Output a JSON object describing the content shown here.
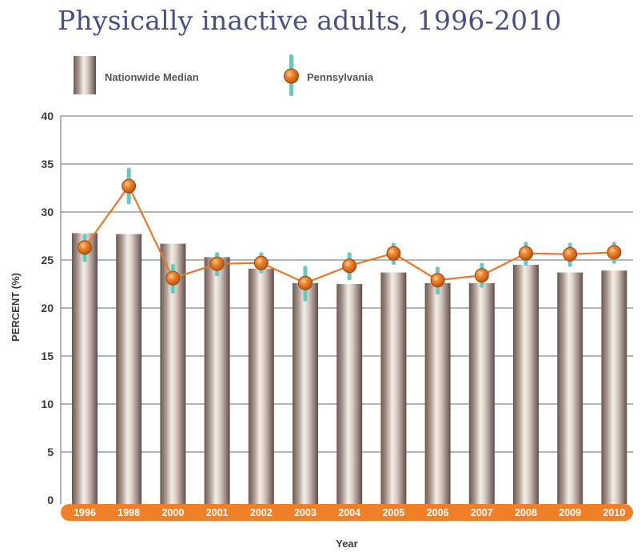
{
  "chart_data": {
    "type": "bar",
    "title": "Physically inactive adults, 1996-2010",
    "xlabel": "Year",
    "ylabel": "PERCENT (%)",
    "ylim": [
      0,
      40
    ],
    "yticks": [
      0,
      5,
      10,
      15,
      20,
      25,
      30,
      35,
      40
    ],
    "grid": true,
    "legend_position": "top-left",
    "categories": [
      "1996",
      "1998",
      "2000",
      "2001",
      "2002",
      "2003",
      "2004",
      "2005",
      "2006",
      "2007",
      "2008",
      "2009",
      "2010"
    ],
    "series": [
      {
        "name": "Nationwide Median",
        "type": "bar",
        "values": [
          27.8,
          27.7,
          26.7,
          25.3,
          24.1,
          22.6,
          22.5,
          23.7,
          22.6,
          22.6,
          24.5,
          23.7,
          23.9
        ]
      },
      {
        "name": "Pennsylvania",
        "type": "line",
        "values": [
          26.3,
          32.7,
          23.1,
          24.6,
          24.7,
          22.6,
          24.4,
          25.7,
          22.9,
          23.4,
          25.7,
          25.6,
          25.8
        ],
        "ci_low": [
          24.8,
          30.8,
          21.5,
          23.3,
          23.6,
          20.7,
          22.9,
          24.5,
          21.4,
          22.1,
          24.4,
          24.3,
          24.6
        ],
        "ci_high": [
          27.7,
          34.6,
          24.6,
          25.8,
          25.8,
          24.4,
          25.8,
          26.8,
          24.3,
          24.7,
          26.9,
          26.8,
          26.9
        ]
      }
    ],
    "colors": {
      "title": "#4a4e86",
      "line": "#e8772a",
      "marker": "#e8772a",
      "error_bar": "#6cc7c1",
      "axis_band": "#f07f28",
      "grid": "#6a6a6a",
      "text": "#3a3a3a"
    }
  }
}
